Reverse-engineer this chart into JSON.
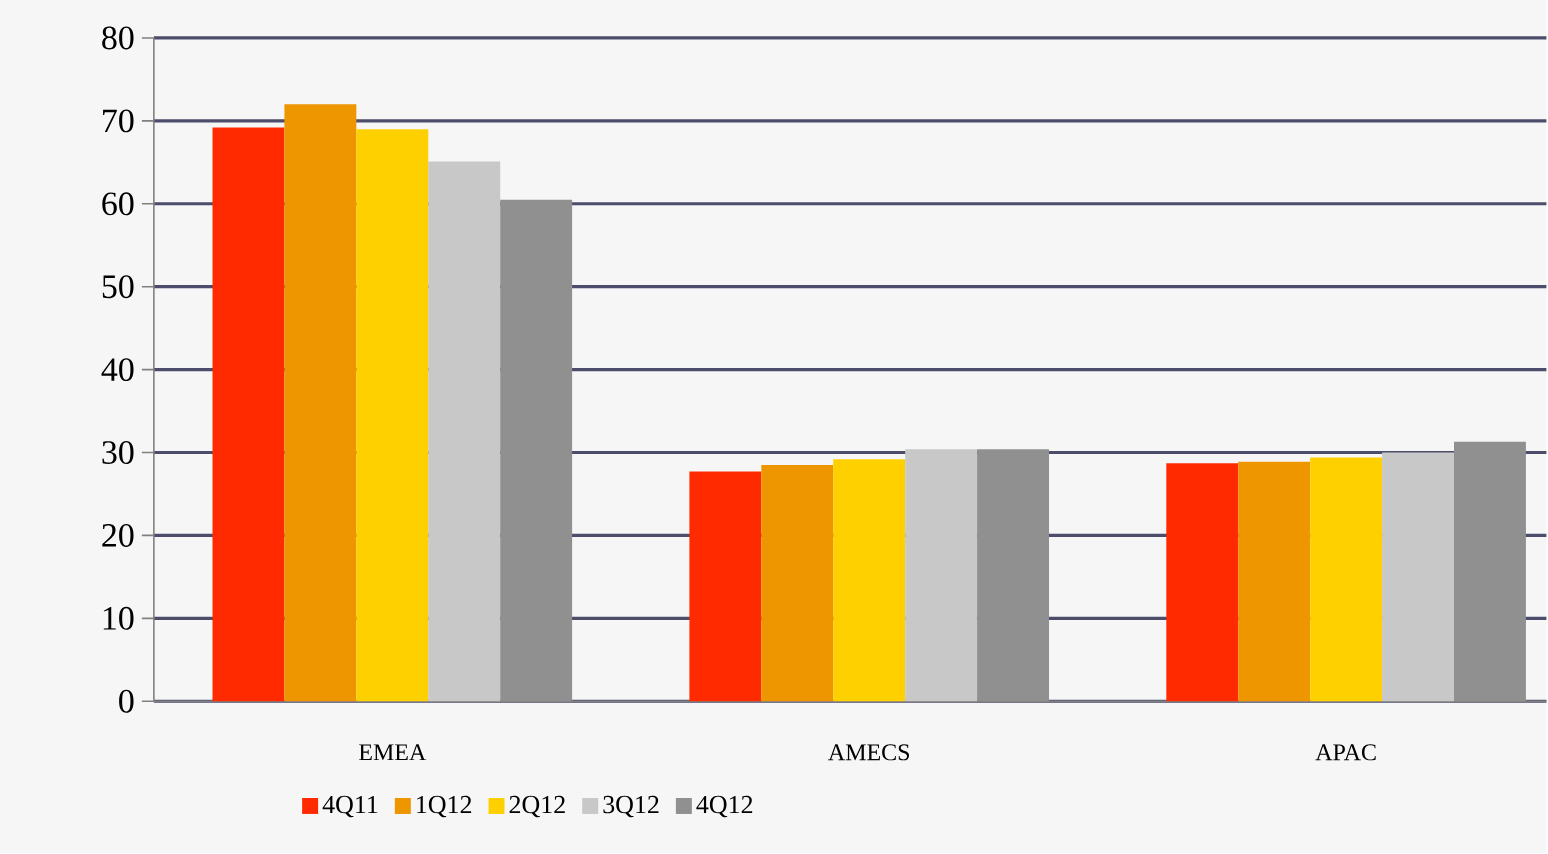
{
  "chart_data": {
    "type": "bar",
    "categories": [
      "EMEA",
      "AMECS",
      "APAC"
    ],
    "series": [
      {
        "name": "4Q11",
        "color": "#ff2a00",
        "values": [
          69.2,
          27.7,
          28.7
        ]
      },
      {
        "name": "1Q12",
        "color": "#ee9600",
        "values": [
          72,
          28.5,
          28.9
        ]
      },
      {
        "name": "2Q12",
        "color": "#ffd000",
        "values": [
          69,
          29.2,
          29.4
        ]
      },
      {
        "name": "3Q12",
        "color": "#c8c8c8",
        "values": [
          65.1,
          30.4,
          30
        ]
      },
      {
        "name": "4Q12",
        "color": "#909090",
        "values": [
          60.5,
          30.4,
          31.3
        ]
      }
    ],
    "ylim": [
      0,
      80
    ],
    "yticks": [
      0,
      10,
      20,
      30,
      40,
      50,
      60,
      70,
      80
    ],
    "grid": "y",
    "legend": "bottom"
  }
}
